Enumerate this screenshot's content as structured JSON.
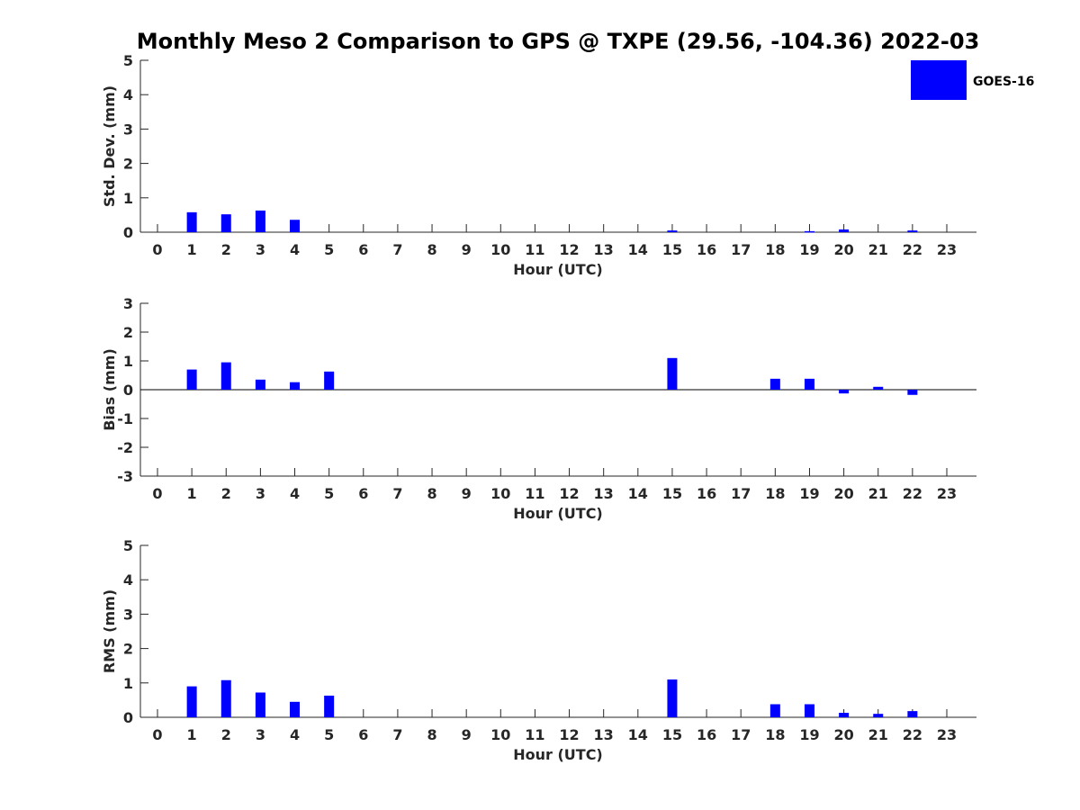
{
  "chart_data": {
    "title": "Monthly Meso 2 Comparison to GPS @ TXPE (29.56, -104.36) 2022-03",
    "legend": {
      "label": "GOES-16",
      "color": "#0000ff",
      "placement": "top-right"
    },
    "bar_color": "#0000ff",
    "panels": [
      {
        "type": "bar",
        "ylabel": "Std. Dev. (mm)",
        "xlabel": "Hour (UTC)",
        "ylim": [
          0,
          5
        ],
        "yticks": [
          0,
          1,
          2,
          3,
          4,
          5
        ],
        "x": [
          1,
          2,
          3,
          4,
          15,
          19,
          20,
          22
        ],
        "values": [
          0.58,
          0.52,
          0.63,
          0.36,
          0.05,
          0.03,
          0.08,
          0.05
        ],
        "zero_line": false
      },
      {
        "type": "bar",
        "ylabel": "Bias (mm)",
        "xlabel": "Hour (UTC)",
        "ylim": [
          -3,
          3
        ],
        "yticks": [
          -3,
          -2,
          -1,
          0,
          1,
          2,
          3
        ],
        "x": [
          1,
          2,
          3,
          4,
          5,
          15,
          18,
          19,
          20,
          21,
          22
        ],
        "values": [
          0.7,
          0.95,
          0.35,
          0.26,
          0.63,
          1.1,
          0.38,
          0.38,
          -0.13,
          0.1,
          -0.18
        ],
        "zero_line": true
      },
      {
        "type": "bar",
        "ylabel": "RMS (mm)",
        "xlabel": "Hour (UTC)",
        "ylim": [
          0,
          5
        ],
        "yticks": [
          0,
          1,
          2,
          3,
          4,
          5
        ],
        "x": [
          1,
          2,
          3,
          4,
          5,
          15,
          18,
          19,
          20,
          21,
          22
        ],
        "values": [
          0.9,
          1.08,
          0.72,
          0.45,
          0.63,
          1.1,
          0.38,
          0.38,
          0.13,
          0.1,
          0.18
        ],
        "zero_line": false
      }
    ],
    "xticks": [
      "0",
      "1",
      "2",
      "3",
      "4",
      "5",
      "6",
      "7",
      "8",
      "9",
      "10",
      "11",
      "12",
      "13",
      "14",
      "15",
      "16",
      "17",
      "18",
      "19",
      "20",
      "21",
      "22",
      "23"
    ]
  }
}
